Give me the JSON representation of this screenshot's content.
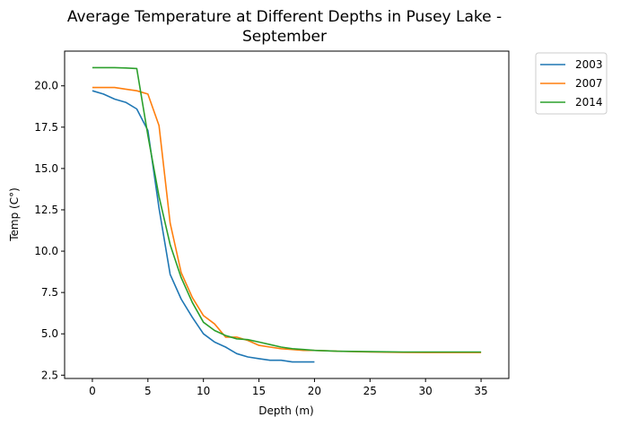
{
  "chart_data": {
    "type": "line",
    "title_line1": "Average Temperature at Different Depths in Pusey Lake -",
    "title_line2": "September",
    "xlabel": "Depth (m)",
    "ylabel": "Temp (C°)",
    "xlim": [
      -2.5,
      37.5
    ],
    "ylim": [
      2.3,
      22.1
    ],
    "xticks": [
      0,
      5,
      10,
      15,
      20,
      25,
      30,
      35
    ],
    "xtick_labels": [
      "0",
      "5",
      "10",
      "15",
      "20",
      "25",
      "30",
      "35"
    ],
    "yticks": [
      2.5,
      5.0,
      7.5,
      10.0,
      12.5,
      15.0,
      17.5,
      20.0
    ],
    "ytick_labels": [
      "2.5",
      "5.0",
      "7.5",
      "10.0",
      "12.5",
      "15.0",
      "17.5",
      "20.0"
    ],
    "grid": false,
    "legend_position": "outside-top-right",
    "series": [
      {
        "name": "2003",
        "color": "#1f77b4",
        "x": [
          0,
          1,
          2,
          3,
          4,
          5,
          6,
          7,
          8,
          9,
          10,
          11,
          12,
          13,
          14,
          15,
          16,
          17,
          18,
          19,
          20
        ],
        "y": [
          19.7,
          19.5,
          19.2,
          19.0,
          18.6,
          17.3,
          12.6,
          8.6,
          7.1,
          6.0,
          5.0,
          4.5,
          4.2,
          3.8,
          3.6,
          3.5,
          3.4,
          3.4,
          3.3,
          3.3,
          3.3
        ]
      },
      {
        "name": "2007",
        "color": "#ff7f0e",
        "x": [
          0,
          1,
          2,
          3,
          4,
          5,
          6,
          7,
          8,
          9,
          10,
          11,
          12,
          13,
          14,
          15,
          16,
          17,
          18,
          19,
          20,
          22,
          25,
          28,
          30,
          35
        ],
        "y": [
          19.9,
          19.9,
          19.9,
          19.8,
          19.7,
          19.5,
          17.6,
          11.7,
          8.7,
          7.2,
          6.1,
          5.6,
          4.8,
          4.8,
          4.6,
          4.3,
          4.2,
          4.1,
          4.05,
          4.0,
          4.0,
          3.95,
          3.9,
          3.88,
          3.87,
          3.87
        ]
      },
      {
        "name": "2014",
        "color": "#2ca02c",
        "x": [
          0,
          1,
          2,
          3,
          4,
          5,
          6,
          7,
          8,
          9,
          10,
          11,
          12,
          13,
          14,
          15,
          16,
          17,
          18,
          19,
          20,
          22,
          25,
          28,
          30,
          35
        ],
        "y": [
          21.1,
          21.1,
          21.1,
          21.08,
          21.05,
          17.0,
          13.3,
          10.4,
          8.4,
          6.9,
          5.7,
          5.2,
          4.9,
          4.7,
          4.65,
          4.5,
          4.35,
          4.2,
          4.1,
          4.05,
          4.0,
          3.95,
          3.92,
          3.9,
          3.9,
          3.9
        ]
      }
    ]
  }
}
